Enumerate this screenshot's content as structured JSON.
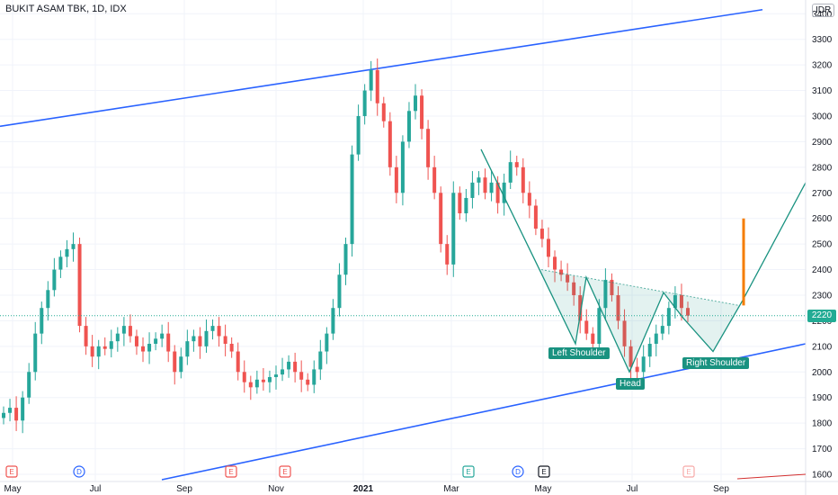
{
  "header": {
    "symbol": "BUKIT ASAM TBK, 1D, IDX",
    "currency": "IDR"
  },
  "price_tag": "2220",
  "pattern_labels": {
    "left_shoulder": "Left Shoulder",
    "head": "Head",
    "right_shoulder": "Right Shoulder"
  },
  "colors": {
    "up": "#26a69a",
    "down": "#ef5350",
    "channel": "#2962ff",
    "pattern": "#199280",
    "target": "#f57c00",
    "grid": "#f0f3fa"
  },
  "chart_data": {
    "type": "candlestick",
    "title": "BUKIT ASAM TBK, 1D, IDX",
    "currency": "IDR",
    "y_ticks": [
      1600,
      1700,
      1800,
      1900,
      2000,
      2100,
      2200,
      2300,
      2400,
      2500,
      2600,
      2700,
      2800,
      2900,
      3000,
      3100,
      3200,
      3300,
      3400
    ],
    "x_ticks": [
      "May",
      "Jul",
      "Sep",
      "Nov",
      "2021",
      "Mar",
      "May",
      "Jul",
      "Sep"
    ],
    "last_price": 2220,
    "events": [
      {
        "month": "May",
        "letter": "E"
      },
      {
        "month": "Jul",
        "letter": "D"
      },
      {
        "month": "Oct",
        "letter": "E"
      },
      {
        "month": "Nov",
        "letter": "E"
      },
      {
        "month": "Apr",
        "letter": "E"
      },
      {
        "month": "May",
        "letter": "D"
      },
      {
        "month": "Jun",
        "letter": "E"
      },
      {
        "month": "Aug",
        "letter": "E"
      }
    ],
    "close_series": [
      1840,
      1860,
      1810,
      1900,
      2000,
      2150,
      2250,
      2320,
      2400,
      2450,
      2480,
      2500,
      2180,
      2100,
      2060,
      2100,
      2090,
      2120,
      2150,
      2180,
      2140,
      2100,
      2080,
      2110,
      2130,
      2150,
      2080,
      2000,
      2060,
      2120,
      2140,
      2100,
      2160,
      2180,
      2140,
      2110,
      2080,
      2000,
      1960,
      1940,
      1970,
      1960,
      1980,
      1990,
      2010,
      2040,
      2000,
      1970,
      1950,
      2010,
      2080,
      2150,
      2250,
      2380,
      2500,
      2850,
      3000,
      3100,
      3180,
      3050,
      2980,
      2800,
      2700,
      2900,
      3020,
      3080,
      2950,
      2800,
      2700,
      2500,
      2420,
      2700,
      2620,
      2680,
      2740,
      2760,
      2700,
      2740,
      2660,
      2740,
      2820,
      2800,
      2700,
      2650,
      2560,
      2520,
      2450,
      2400,
      2380,
      2350,
      2300,
      2200,
      2150,
      2110,
      2250,
      2360,
      2300,
      2200,
      2100,
      2020,
      2000,
      2060,
      2110,
      2150,
      2180,
      2250,
      2300,
      2250,
      2220
    ],
    "channel": {
      "upper": {
        "start": 2960,
        "end": 3430
      },
      "lower": {
        "start": 1580,
        "end": 2110
      }
    },
    "neckline": {
      "start": 2400,
      "end": 2260
    },
    "pattern_path": [
      2870,
      2400,
      2110,
      2370,
      2000,
      2310,
      2210,
      2080,
      2280,
      2740
    ],
    "target": {
      "from": 2260,
      "to": 2600
    }
  }
}
